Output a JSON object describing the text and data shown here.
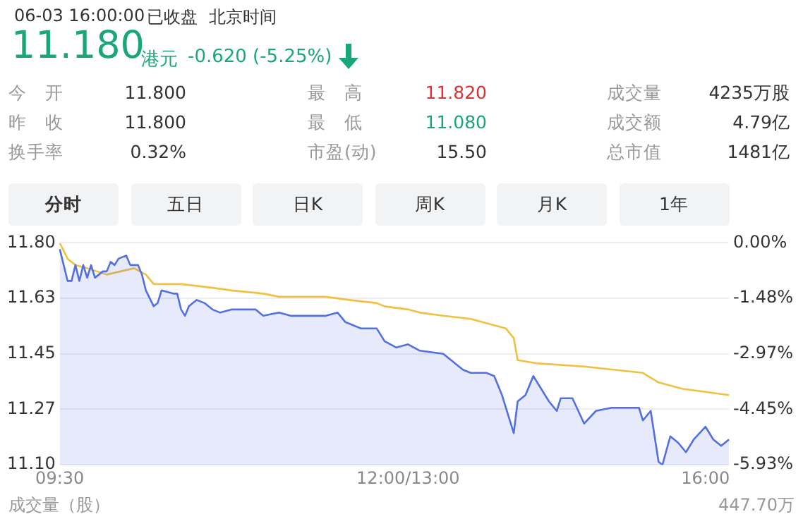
{
  "chart_data": {
    "type": "line",
    "annotations": [
      "06-03 16:00:00",
      "已收盘",
      "北京时间",
      "11.180",
      "港元",
      "-0.620 (-5.25%)",
      "今　开",
      "11.800",
      "最　高",
      "11.820",
      "成交量",
      "4235万股",
      "昨　收",
      "11.800",
      "最　低",
      "11.080",
      "成交额",
      "4.79亿",
      "换手率",
      "0.32%",
      "市盈(动)",
      "15.50",
      "总市值",
      "1481亿",
      "分时",
      "五日",
      "日K",
      "周K",
      "月K",
      "1年",
      "成交量（股）",
      "447.70万"
    ],
    "categories": [
      "09:30",
      null,
      null,
      null,
      null,
      null,
      null,
      null,
      null,
      null,
      null,
      null,
      null,
      null,
      null,
      null,
      null,
      null,
      null,
      null,
      null,
      null,
      null,
      null,
      null,
      null,
      null,
      null,
      null,
      null,
      null,
      null,
      null,
      null,
      null,
      null,
      null,
      null,
      null,
      null,
      null,
      null,
      null,
      null,
      null,
      null,
      null,
      null,
      null,
      null,
      null,
      null,
      null,
      null,
      null,
      null,
      null,
      null,
      null,
      null,
      null,
      null,
      null,
      null,
      null,
      null,
      null,
      null,
      null,
      null,
      null,
      null,
      null,
      null,
      null,
      null,
      null,
      null,
      null,
      null,
      null,
      null,
      null,
      null,
      null,
      null,
      null,
      null,
      null,
      "12:00/13:00",
      null,
      null,
      null,
      null,
      null,
      null,
      null,
      null,
      null,
      null,
      null,
      null,
      null,
      null,
      null,
      null,
      null,
      null,
      null,
      null,
      null,
      null,
      null,
      null,
      null,
      null,
      null,
      null,
      null,
      null,
      null,
      null,
      null,
      null,
      null,
      null,
      null,
      null,
      null,
      null,
      null,
      null,
      null,
      null,
      null,
      null,
      null,
      null,
      null,
      null,
      null,
      null,
      null,
      null,
      null,
      null,
      null,
      null,
      null,
      null,
      null,
      null,
      null,
      null,
      null,
      null,
      null,
      null,
      null,
      null,
      null,
      null,
      null,
      null,
      null,
      "16:00",
      null,
      null,
      null,
      null,
      null,
      null
    ],
    "series": [
      {
        "type": "area",
        "color": "#5470e0",
        "values": [
          11.78,
          11.73,
          11.68,
          11.68,
          11.73,
          11.68,
          11.73,
          11.69,
          11.73,
          11.69,
          null,
          11.71,
          11.71,
          11.74,
          11.73,
          11.75,
          null,
          11.76,
          11.73,
          null,
          11.73,
          11.7,
          11.65,
          null,
          11.6,
          11.61,
          11.65,
          null,
          null,
          11.64,
          11.64,
          11.59,
          11.57,
          11.6,
          null,
          11.62,
          null,
          11.61,
          null,
          11.59,
          null,
          11.58,
          null,
          null,
          11.59,
          null,
          11.59,
          null,
          null,
          null,
          11.59,
          null,
          11.57,
          null,
          null,
          null,
          11.58,
          null,
          null,
          11.57,
          null,
          null,
          null,
          11.57,
          null,
          null,
          null,
          null,
          11.57,
          null,
          null,
          11.58,
          null,
          11.55,
          null,
          null,
          null,
          11.53,
          null,
          null,
          null,
          11.53,
          null,
          11.49,
          null,
          null,
          11.47,
          null,
          null,
          11.48,
          null,
          null,
          11.46,
          null,
          null,
          null,
          null,
          null,
          11.45,
          null,
          11.43,
          null,
          null,
          11.4,
          null,
          11.39,
          null,
          null,
          null,
          11.39,
          null,
          11.38,
          null,
          11.32,
          null,
          null,
          11.2,
          11.3,
          null,
          11.32,
          null,
          11.38,
          11.36,
          null,
          null,
          11.3,
          null,
          11.27,
          11.31,
          null,
          null,
          11.31,
          null,
          null,
          11.23,
          null,
          null,
          11.27,
          null,
          null,
          null,
          11.28,
          null,
          null,
          11.28,
          null,
          null,
          null,
          11.28,
          11.24,
          null,
          11.27,
          null,
          11.11,
          11.1,
          null,
          11.19,
          null,
          11.17,
          null,
          11.14,
          null,
          11.18,
          null,
          null,
          11.22,
          null,
          11.18,
          null,
          11.16,
          null,
          11.18
        ]
      },
      {
        "type": "line",
        "color": "#f0c040",
        "values": [
          11.8,
          null,
          11.75,
          null,
          11.73,
          null,
          null,
          11.72,
          null,
          null,
          null,
          null,
          11.7,
          null,
          null,
          null,
          null,
          null,
          null,
          11.72,
          null,
          null,
          11.7,
          null,
          11.67,
          null,
          null,
          null,
          null,
          null,
          null,
          11.67,
          null,
          null,
          null,
          null,
          null,
          null,
          11.66,
          null,
          null,
          null,
          null,
          null,
          11.65,
          null,
          null,
          null,
          null,
          null,
          null,
          null,
          11.64,
          null,
          null,
          null,
          11.63,
          null,
          null,
          null,
          null,
          null,
          null,
          null,
          null,
          null,
          null,
          null,
          11.63,
          null,
          null,
          null,
          null,
          null,
          11.62,
          null,
          null,
          null,
          null,
          null,
          null,
          11.61,
          null,
          11.6,
          null,
          null,
          null,
          null,
          null,
          11.59,
          null,
          null,
          11.58,
          null,
          null,
          null,
          null,
          null,
          11.57,
          null,
          null,
          null,
          null,
          null,
          null,
          11.56,
          null,
          null,
          null,
          null,
          null,
          null,
          null,
          null,
          11.53,
          null,
          11.5,
          11.43,
          null,
          null,
          null,
          null,
          11.42,
          null,
          null,
          null,
          null,
          null,
          null,
          null,
          null,
          null,
          null,
          null,
          11.41,
          null,
          null,
          null,
          null,
          null,
          null,
          null,
          null,
          null,
          null,
          null,
          null,
          null,
          null,
          11.39,
          null,
          null,
          null,
          11.36,
          null,
          null,
          null,
          null,
          null,
          11.34,
          null,
          null,
          null,
          null,
          null,
          11.33,
          null,
          null,
          null,
          null,
          null,
          11.32
        ]
      }
    ],
    "ylim": [
      11.1,
      11.8
    ],
    "yticks": [
      {
        "value": 11.1,
        "label": "11.10"
      },
      {
        "value": 11.275,
        "label": "11.27"
      },
      {
        "value": 11.45,
        "label": "11.45"
      },
      {
        "value": 11.625,
        "label": "11.63"
      },
      {
        "value": 11.8,
        "label": "11.80"
      }
    ],
    "y2lim": [
      -5.93,
      0
    ],
    "y2ticks": [
      {
        "value": -5.93,
        "label": "-5.93%"
      },
      {
        "value": -4.45,
        "label": "-4.45%"
      },
      {
        "value": -2.97,
        "label": "-2.97%"
      },
      {
        "value": -1.48,
        "label": "-1.48%"
      },
      {
        "value": 0,
        "label": "0.00%"
      }
    ],
    "grid": "y",
    "legend": false,
    "marker": "none",
    "line_style": "solid"
  }
}
